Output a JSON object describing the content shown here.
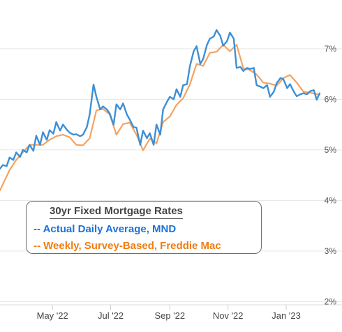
{
  "chart_data": {
    "type": "line",
    "title": "30yr Fixed Mortgage Rates",
    "y_ticks": [
      "2%",
      "3%",
      "4%",
      "5%",
      "6%",
      "7%"
    ],
    "y_tick_values": [
      2,
      3,
      4,
      5,
      6,
      7
    ],
    "ylim": [
      1.95,
      7.55
    ],
    "x_ticks": [
      {
        "label": "May '22",
        "x": "2022-05-01"
      },
      {
        "label": "Jul '22",
        "x": "2022-07-01"
      },
      {
        "label": "Sep '22",
        "x": "2022-09-01"
      },
      {
        "label": "Nov '22",
        "x": "2022-11-01"
      },
      {
        "label": "Jan '23",
        "x": "2023-01-01"
      }
    ],
    "xlim": [
      "2022-03-07",
      "2023-02-08"
    ],
    "grid": true,
    "legend_position": "bottom-left",
    "series": [
      {
        "name": "-- Actual Daily Average, MND",
        "color": "#3d8fd6",
        "points": [
          [
            "2022-03-07",
            4.63
          ],
          [
            "2022-03-10",
            4.7
          ],
          [
            "2022-03-14",
            4.68
          ],
          [
            "2022-03-17",
            4.85
          ],
          [
            "2022-03-21",
            4.8
          ],
          [
            "2022-03-24",
            4.95
          ],
          [
            "2022-03-28",
            4.86
          ],
          [
            "2022-03-31",
            5.0
          ],
          [
            "2022-04-04",
            4.95
          ],
          [
            "2022-04-07",
            5.1
          ],
          [
            "2022-04-11",
            4.98
          ],
          [
            "2022-04-14",
            5.28
          ],
          [
            "2022-04-18",
            5.1
          ],
          [
            "2022-04-21",
            5.35
          ],
          [
            "2022-04-25",
            5.2
          ],
          [
            "2022-04-28",
            5.39
          ],
          [
            "2022-05-02",
            5.32
          ],
          [
            "2022-05-05",
            5.55
          ],
          [
            "2022-05-09",
            5.38
          ],
          [
            "2022-05-12",
            5.5
          ],
          [
            "2022-05-16",
            5.4
          ],
          [
            "2022-05-19",
            5.34
          ],
          [
            "2022-05-23",
            5.3
          ],
          [
            "2022-05-26",
            5.31
          ],
          [
            "2022-05-30",
            5.27
          ],
          [
            "2022-06-02",
            5.3
          ],
          [
            "2022-06-06",
            5.45
          ],
          [
            "2022-06-09",
            5.7
          ],
          [
            "2022-06-13",
            6.29
          ],
          [
            "2022-06-16",
            6.05
          ],
          [
            "2022-06-20",
            5.8
          ],
          [
            "2022-06-23",
            5.86
          ],
          [
            "2022-06-27",
            5.8
          ],
          [
            "2022-06-30",
            5.72
          ],
          [
            "2022-07-04",
            5.5
          ],
          [
            "2022-07-07",
            5.9
          ],
          [
            "2022-07-11",
            5.8
          ],
          [
            "2022-07-14",
            5.92
          ],
          [
            "2022-07-18",
            5.7
          ],
          [
            "2022-07-21",
            5.6
          ],
          [
            "2022-07-25",
            5.45
          ],
          [
            "2022-07-28",
            5.44
          ],
          [
            "2022-08-01",
            5.1
          ],
          [
            "2022-08-04",
            5.38
          ],
          [
            "2022-08-08",
            5.23
          ],
          [
            "2022-08-11",
            5.33
          ],
          [
            "2022-08-15",
            5.1
          ],
          [
            "2022-08-18",
            5.5
          ],
          [
            "2022-08-22",
            5.3
          ],
          [
            "2022-08-25",
            5.8
          ],
          [
            "2022-08-29",
            5.95
          ],
          [
            "2022-09-01",
            6.05
          ],
          [
            "2022-09-05",
            6.0
          ],
          [
            "2022-09-08",
            6.2
          ],
          [
            "2022-09-12",
            6.05
          ],
          [
            "2022-09-15",
            6.28
          ],
          [
            "2022-09-19",
            6.3
          ],
          [
            "2022-09-22",
            6.65
          ],
          [
            "2022-09-26",
            6.95
          ],
          [
            "2022-09-29",
            7.05
          ],
          [
            "2022-10-03",
            6.7
          ],
          [
            "2022-10-06",
            6.8
          ],
          [
            "2022-10-10",
            7.08
          ],
          [
            "2022-10-13",
            7.2
          ],
          [
            "2022-10-17",
            7.24
          ],
          [
            "2022-10-20",
            7.37
          ],
          [
            "2022-10-24",
            7.25
          ],
          [
            "2022-10-27",
            7.06
          ],
          [
            "2022-10-31",
            7.15
          ],
          [
            "2022-11-03",
            7.32
          ],
          [
            "2022-11-07",
            7.2
          ],
          [
            "2022-11-10",
            6.62
          ],
          [
            "2022-11-14",
            6.64
          ],
          [
            "2022-11-17",
            6.56
          ],
          [
            "2022-11-21",
            6.62
          ],
          [
            "2022-11-24",
            6.6
          ],
          [
            "2022-11-28",
            6.62
          ],
          [
            "2022-12-01",
            6.28
          ],
          [
            "2022-12-05",
            6.25
          ],
          [
            "2022-12-08",
            6.22
          ],
          [
            "2022-12-12",
            6.28
          ],
          [
            "2022-12-15",
            6.05
          ],
          [
            "2022-12-19",
            6.15
          ],
          [
            "2022-12-22",
            6.32
          ],
          [
            "2022-12-26",
            6.42
          ],
          [
            "2022-12-29",
            6.4
          ],
          [
            "2023-01-02",
            6.22
          ],
          [
            "2023-01-05",
            6.3
          ],
          [
            "2023-01-09",
            6.15
          ],
          [
            "2023-01-12",
            6.06
          ],
          [
            "2023-01-16",
            6.1
          ],
          [
            "2023-01-19",
            6.12
          ],
          [
            "2023-01-23",
            6.1
          ],
          [
            "2023-01-26",
            6.16
          ],
          [
            "2023-01-30",
            6.18
          ],
          [
            "2023-02-02",
            5.99
          ],
          [
            "2023-02-05",
            6.12
          ]
        ]
      },
      {
        "name": "-- Weekly, Survey-Based, Freddie Mac",
        "color": "#f4a261",
        "points": [
          [
            "2022-03-07",
            4.2
          ],
          [
            "2022-03-17",
            4.6
          ],
          [
            "2022-03-24",
            4.8
          ],
          [
            "2022-03-31",
            4.95
          ],
          [
            "2022-04-07",
            5.1
          ],
          [
            "2022-04-14",
            5.1
          ],
          [
            "2022-04-21",
            5.1
          ],
          [
            "2022-04-28",
            5.2
          ],
          [
            "2022-05-05",
            5.27
          ],
          [
            "2022-05-12",
            5.3
          ],
          [
            "2022-05-19",
            5.25
          ],
          [
            "2022-05-26",
            5.1
          ],
          [
            "2022-06-02",
            5.09
          ],
          [
            "2022-06-09",
            5.23
          ],
          [
            "2022-06-16",
            5.78
          ],
          [
            "2022-06-23",
            5.81
          ],
          [
            "2022-06-30",
            5.7
          ],
          [
            "2022-07-07",
            5.3
          ],
          [
            "2022-07-14",
            5.51
          ],
          [
            "2022-07-21",
            5.54
          ],
          [
            "2022-07-28",
            5.3
          ],
          [
            "2022-08-04",
            4.99
          ],
          [
            "2022-08-11",
            5.22
          ],
          [
            "2022-08-18",
            5.13
          ],
          [
            "2022-08-25",
            5.55
          ],
          [
            "2022-09-01",
            5.66
          ],
          [
            "2022-09-08",
            5.89
          ],
          [
            "2022-09-15",
            6.02
          ],
          [
            "2022-09-22",
            6.29
          ],
          [
            "2022-09-29",
            6.7
          ],
          [
            "2022-10-06",
            6.66
          ],
          [
            "2022-10-13",
            6.92
          ],
          [
            "2022-10-20",
            6.94
          ],
          [
            "2022-10-27",
            7.08
          ],
          [
            "2022-11-03",
            6.95
          ],
          [
            "2022-11-10",
            7.08
          ],
          [
            "2022-11-17",
            6.61
          ],
          [
            "2022-11-24",
            6.58
          ],
          [
            "2022-12-01",
            6.49
          ],
          [
            "2022-12-08",
            6.33
          ],
          [
            "2022-12-15",
            6.31
          ],
          [
            "2022-12-22",
            6.27
          ],
          [
            "2022-12-29",
            6.42
          ],
          [
            "2023-01-05",
            6.48
          ],
          [
            "2023-01-12",
            6.33
          ],
          [
            "2023-01-19",
            6.15
          ],
          [
            "2023-01-26",
            6.13
          ],
          [
            "2023-02-05",
            6.09
          ]
        ]
      }
    ]
  }
}
